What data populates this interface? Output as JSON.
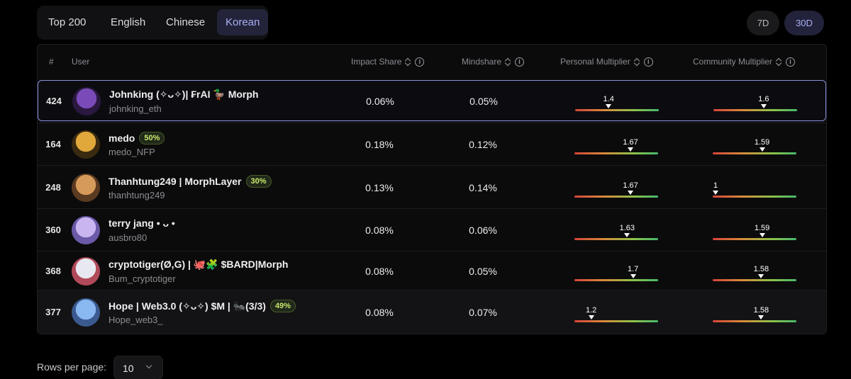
{
  "lang_tabs": [
    "Top 200",
    "English",
    "Chinese",
    "Korean"
  ],
  "active_lang_tab": "Korean",
  "time_ranges": [
    "7D",
    "30D"
  ],
  "active_time_range": "30D",
  "columns": {
    "rank": "#",
    "user": "User",
    "impact_share": "Impact Share",
    "mindshare": "Mindshare",
    "personal_multiplier": "Personal Multiplier",
    "community_multiplier": "Community Multiplier"
  },
  "rows": [
    {
      "rank": "424",
      "name": "Johnking (✧ᴗ✧)| ₣rAI 🦆 Morph",
      "badge": null,
      "handle": "johnking_eth",
      "impact_share": "0.06%",
      "mindshare": "0.05%",
      "personal_multiplier": "1.4",
      "personal_level": 0.4,
      "community_multiplier": "1.6",
      "community_level": 0.6
    },
    {
      "rank": "164",
      "name": "medo",
      "badge": "50%",
      "handle": "medo_NFP",
      "impact_share": "0.18%",
      "mindshare": "0.12%",
      "personal_multiplier": "1.67",
      "personal_level": 0.67,
      "community_multiplier": "1.59",
      "community_level": 0.59
    },
    {
      "rank": "248",
      "name": "Thanhtung249 | MorphLayer",
      "badge": "30%",
      "handle": "thanhtung249",
      "impact_share": "0.13%",
      "mindshare": "0.14%",
      "personal_multiplier": "1.67",
      "personal_level": 0.67,
      "community_multiplier": "1",
      "community_level": 0.0
    },
    {
      "rank": "360",
      "name": "terry jang • ᴗ •",
      "badge": null,
      "handle": "ausbro80",
      "impact_share": "0.08%",
      "mindshare": "0.06%",
      "personal_multiplier": "1.63",
      "personal_level": 0.63,
      "community_multiplier": "1.59",
      "community_level": 0.59
    },
    {
      "rank": "368",
      "name": "cryptotiger(Ø,G) | 🐙🧩 $BARD|Morph",
      "badge": null,
      "handle": "Bum_cryptotiger",
      "impact_share": "0.08%",
      "mindshare": "0.05%",
      "personal_multiplier": "1.7",
      "personal_level": 0.7,
      "community_multiplier": "1.58",
      "community_level": 0.58
    },
    {
      "rank": "377",
      "name": "Hope |  Web3.0 (✧ᴗ✧) $M | 🐜(3/3)",
      "badge": "49%",
      "handle": "Hope_web3_",
      "impact_share": "0.08%",
      "mindshare": "0.07%",
      "personal_multiplier": "1.2",
      "personal_level": 0.2,
      "community_multiplier": "1.58",
      "community_level": 0.58
    }
  ],
  "pagination": {
    "rows_per_page_label": "Rows per page:",
    "rows_per_page_value": "10"
  },
  "colors": {
    "accent": "#a9b0f5",
    "badge": "#c8e86a",
    "highlight_border": "#8a90d8"
  }
}
